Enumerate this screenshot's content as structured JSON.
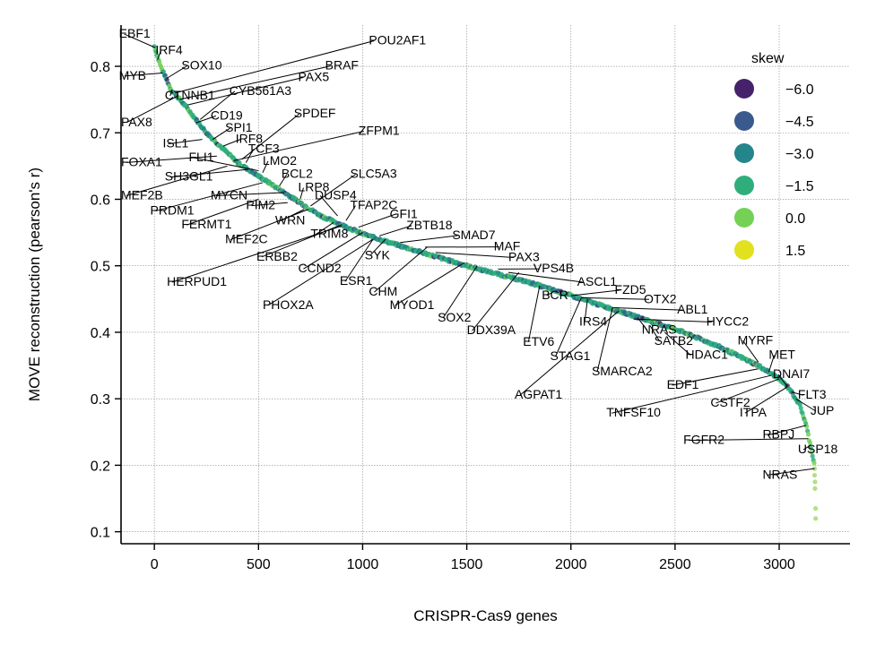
{
  "chart_data": {
    "type": "scatter",
    "xlabel": "CRISPR-Cas9 genes",
    "ylabel": "MOVE reconstruction (pearson's r)",
    "xlim": [
      -160,
      3340
    ],
    "ylim": [
      0.082,
      0.862
    ],
    "x_ticks": [
      0,
      500,
      1000,
      1500,
      2000,
      2500,
      3000
    ],
    "x_tick_labels": [
      "0",
      "500",
      "1000",
      "1500",
      "2000",
      "2500",
      "3000"
    ],
    "y_ticks": [
      0.1,
      0.2,
      0.3,
      0.4,
      0.5,
      0.6,
      0.7,
      0.8
    ],
    "y_tick_labels": [
      "0.1",
      "0.2",
      "0.3",
      "0.4",
      "0.5",
      "0.6",
      "0.7",
      "0.8"
    ],
    "grid": true,
    "curve_shape": [
      [
        0,
        0.83
      ],
      [
        30,
        0.8
      ],
      [
        80,
        0.765
      ],
      [
        150,
        0.74
      ],
      [
        250,
        0.7
      ],
      [
        400,
        0.655
      ],
      [
        600,
        0.615
      ],
      [
        800,
        0.575
      ],
      [
        1000,
        0.548
      ],
      [
        1200,
        0.528
      ],
      [
        1500,
        0.5
      ],
      [
        1800,
        0.475
      ],
      [
        2000,
        0.455
      ],
      [
        2200,
        0.435
      ],
      [
        2500,
        0.405
      ],
      [
        2700,
        0.38
      ],
      [
        2900,
        0.35
      ],
      [
        3000,
        0.33
      ],
      [
        3050,
        0.315
      ],
      [
        3100,
        0.29
      ],
      [
        3130,
        0.26
      ],
      [
        3150,
        0.23
      ],
      [
        3170,
        0.2
      ]
    ],
    "tail_points": [
      [
        3170,
        0.195
      ],
      [
        3170,
        0.185
      ],
      [
        3172,
        0.175
      ],
      [
        3172,
        0.165
      ],
      [
        3175,
        0.135
      ],
      [
        3175,
        0.12
      ]
    ],
    "legend": {
      "title": "skew",
      "placement": "top-right",
      "entries": [
        {
          "label": "−6.0",
          "color": "#46226b"
        },
        {
          "label": "−4.5",
          "color": "#3a5a8e"
        },
        {
          "label": "−3.0",
          "color": "#24858a"
        },
        {
          "label": "−1.5",
          "color": "#2fae7c"
        },
        {
          "label": "0.0",
          "color": "#74d155"
        },
        {
          "label": "1.5",
          "color": "#e1e11f"
        }
      ]
    },
    "annotations": [
      {
        "label": "EBF1",
        "x": 5,
        "y": 0.828,
        "tx": -170,
        "ty": 0.843
      },
      {
        "label": "IRF4",
        "x": 15,
        "y": 0.81,
        "tx": 5,
        "ty": 0.818
      },
      {
        "label": "MYB",
        "x": 40,
        "y": 0.79,
        "tx": -170,
        "ty": 0.78
      },
      {
        "label": "SOX10",
        "x": 60,
        "y": 0.782,
        "tx": 130,
        "ty": 0.795
      },
      {
        "label": "CTNNB1",
        "x": 85,
        "y": 0.765,
        "tx": 50,
        "ty": 0.75
      },
      {
        "label": "PAX8",
        "x": 110,
        "y": 0.755,
        "tx": -160,
        "ty": 0.71
      },
      {
        "label": "BRAF",
        "x": 120,
        "y": 0.75,
        "tx": 820,
        "ty": 0.795
      },
      {
        "label": "POU2AF1",
        "x": 100,
        "y": 0.76,
        "tx": 1030,
        "ty": 0.833
      },
      {
        "label": "PAX5",
        "x": 160,
        "y": 0.742,
        "tx": 690,
        "ty": 0.778
      },
      {
        "label": "CYB561A3",
        "x": 220,
        "y": 0.72,
        "tx": 360,
        "ty": 0.757
      },
      {
        "label": "CD19",
        "x": 200,
        "y": 0.715,
        "tx": 270,
        "ty": 0.72
      },
      {
        "label": "SPI1",
        "x": 280,
        "y": 0.69,
        "tx": 340,
        "ty": 0.702
      },
      {
        "label": "ISL1",
        "x": 230,
        "y": 0.69,
        "tx": 40,
        "ty": 0.678
      },
      {
        "label": "IRF8",
        "x": 330,
        "y": 0.68,
        "tx": 390,
        "ty": 0.685
      },
      {
        "label": "SPDEF",
        "x": 420,
        "y": 0.66,
        "tx": 670,
        "ty": 0.723
      },
      {
        "label": "TCF3",
        "x": 440,
        "y": 0.655,
        "tx": 450,
        "ty": 0.67
      },
      {
        "label": "FLI1",
        "x": 500,
        "y": 0.643,
        "tx": 165,
        "ty": 0.657
      },
      {
        "label": "ZFPM1",
        "x": 380,
        "y": 0.658,
        "tx": 980,
        "ty": 0.697
      },
      {
        "label": "FOXA1",
        "x": 300,
        "y": 0.665,
        "tx": -160,
        "ty": 0.65
      },
      {
        "label": "LMO2",
        "x": 520,
        "y": 0.64,
        "tx": 520,
        "ty": 0.652
      },
      {
        "label": "BCL2",
        "x": 600,
        "y": 0.62,
        "tx": 610,
        "ty": 0.632
      },
      {
        "label": "SH3GL1",
        "x": 450,
        "y": 0.645,
        "tx": 50,
        "ty": 0.628
      },
      {
        "label": "SLC5A3",
        "x": 750,
        "y": 0.59,
        "tx": 940,
        "ty": 0.632
      },
      {
        "label": "LRP8",
        "x": 700,
        "y": 0.6,
        "tx": 690,
        "ty": 0.612
      },
      {
        "label": "MEF2B",
        "x": 350,
        "y": 0.65,
        "tx": -160,
        "ty": 0.6
      },
      {
        "label": "MYCN",
        "x": 620,
        "y": 0.61,
        "tx": 270,
        "ty": 0.6
      },
      {
        "label": "DUSP4",
        "x": 880,
        "y": 0.575,
        "tx": 770,
        "ty": 0.6
      },
      {
        "label": "TFAP2C",
        "x": 920,
        "y": 0.568,
        "tx": 940,
        "ty": 0.585
      },
      {
        "label": "PIM2",
        "x": 640,
        "y": 0.595,
        "tx": 440,
        "ty": 0.585
      },
      {
        "label": "PRDM1",
        "x": 520,
        "y": 0.625,
        "tx": -20,
        "ty": 0.577
      },
      {
        "label": "GFI1",
        "x": 980,
        "y": 0.558,
        "tx": 1130,
        "ty": 0.572
      },
      {
        "label": "WRN",
        "x": 720,
        "y": 0.585,
        "tx": 580,
        "ty": 0.562
      },
      {
        "label": "FERMT1",
        "x": 500,
        "y": 0.6,
        "tx": 130,
        "ty": 0.556
      },
      {
        "label": "ZBTB18",
        "x": 1080,
        "y": 0.545,
        "tx": 1210,
        "ty": 0.555
      },
      {
        "label": "TRIM8",
        "x": 860,
        "y": 0.565,
        "tx": 750,
        "ty": 0.542
      },
      {
        "label": "MEF2C",
        "x": 740,
        "y": 0.585,
        "tx": 340,
        "ty": 0.534
      },
      {
        "label": "SMAD7",
        "x": 1180,
        "y": 0.535,
        "tx": 1430,
        "ty": 0.54
      },
      {
        "label": "MAF",
        "x": 1300,
        "y": 0.528,
        "tx": 1630,
        "ty": 0.523
      },
      {
        "label": "SYK",
        "x": 1110,
        "y": 0.54,
        "tx": 1010,
        "ty": 0.51
      },
      {
        "label": "ERBB2",
        "x": 900,
        "y": 0.562,
        "tx": 490,
        "ty": 0.508
      },
      {
        "label": "PAX3",
        "x": 1350,
        "y": 0.52,
        "tx": 1700,
        "ty": 0.507
      },
      {
        "label": "VPS4B",
        "x": 1650,
        "y": 0.495,
        "tx": 1820,
        "ty": 0.49
      },
      {
        "label": "CCND2",
        "x": 1000,
        "y": 0.55,
        "tx": 690,
        "ty": 0.49
      },
      {
        "label": "HERPUD1",
        "x": 900,
        "y": 0.56,
        "tx": 60,
        "ty": 0.47
      },
      {
        "label": "ESR1",
        "x": 1050,
        "y": 0.54,
        "tx": 890,
        "ty": 0.471
      },
      {
        "label": "ASCL1",
        "x": 1700,
        "y": 0.49,
        "tx": 2030,
        "ty": 0.47
      },
      {
        "label": "FZD5",
        "x": 2000,
        "y": 0.455,
        "tx": 2210,
        "ty": 0.458
      },
      {
        "label": "CHM",
        "x": 1310,
        "y": 0.528,
        "tx": 1030,
        "ty": 0.455
      },
      {
        "label": "BCR",
        "x": 1920,
        "y": 0.462,
        "tx": 1860,
        "ty": 0.45
      },
      {
        "label": "OTX2",
        "x": 2050,
        "y": 0.452,
        "tx": 2350,
        "ty": 0.444
      },
      {
        "label": "PHOX2A",
        "x": 1050,
        "y": 0.54,
        "tx": 520,
        "ty": 0.435
      },
      {
        "label": "MYOD1",
        "x": 1490,
        "y": 0.505,
        "tx": 1130,
        "ty": 0.435
      },
      {
        "label": "ABL1",
        "x": 2200,
        "y": 0.437,
        "tx": 2510,
        "ty": 0.428
      },
      {
        "label": "SOX2",
        "x": 1550,
        "y": 0.5,
        "tx": 1360,
        "ty": 0.416
      },
      {
        "label": "IRS4",
        "x": 2080,
        "y": 0.45,
        "tx": 2040,
        "ty": 0.41
      },
      {
        "label": "HYCC2",
        "x": 2300,
        "y": 0.42,
        "tx": 2650,
        "ty": 0.41
      },
      {
        "label": "NRAS",
        "x": 2320,
        "y": 0.422,
        "tx": 2340,
        "ty": 0.398
      },
      {
        "label": "DDX39A",
        "x": 1750,
        "y": 0.49,
        "tx": 1500,
        "ty": 0.397
      },
      {
        "label": "MYRF",
        "x": 2900,
        "y": 0.355,
        "tx": 2800,
        "ty": 0.382
      },
      {
        "label": "SATB2",
        "x": 2380,
        "y": 0.41,
        "tx": 2400,
        "ty": 0.381
      },
      {
        "label": "ETV6",
        "x": 1850,
        "y": 0.47,
        "tx": 1770,
        "ty": 0.38
      },
      {
        "label": "HDAC1",
        "x": 2450,
        "y": 0.4,
        "tx": 2550,
        "ty": 0.36
      },
      {
        "label": "MET",
        "x": 2950,
        "y": 0.34,
        "tx": 2950,
        "ty": 0.36
      },
      {
        "label": "STAG1",
        "x": 2050,
        "y": 0.452,
        "tx": 1900,
        "ty": 0.358
      },
      {
        "label": "SMARCA2",
        "x": 2200,
        "y": 0.437,
        "tx": 2100,
        "ty": 0.335
      },
      {
        "label": "DNAI7",
        "x": 3040,
        "y": 0.318,
        "tx": 2970,
        "ty": 0.331
      },
      {
        "label": "EDF1",
        "x": 2900,
        "y": 0.345,
        "tx": 2460,
        "ty": 0.315
      },
      {
        "label": "FLT3",
        "x": 3060,
        "y": 0.31,
        "tx": 3090,
        "ty": 0.3
      },
      {
        "label": "AGPAT1",
        "x": 2230,
        "y": 0.432,
        "tx": 1730,
        "ty": 0.3
      },
      {
        "label": "CSTF2",
        "x": 3000,
        "y": 0.33,
        "tx": 2670,
        "ty": 0.288
      },
      {
        "label": "TNFSF10",
        "x": 2960,
        "y": 0.335,
        "tx": 2170,
        "ty": 0.273
      },
      {
        "label": "ITPA",
        "x": 3040,
        "y": 0.318,
        "tx": 2810,
        "ty": 0.273
      },
      {
        "label": "JUP",
        "x": 3080,
        "y": 0.3,
        "tx": 3150,
        "ty": 0.276
      },
      {
        "label": "RBPJ",
        "x": 3130,
        "y": 0.26,
        "tx": 2920,
        "ty": 0.24
      },
      {
        "label": "FGFR2",
        "x": 3140,
        "y": 0.24,
        "tx": 2540,
        "ty": 0.232
      },
      {
        "label": "USP18",
        "x": 3150,
        "y": 0.23,
        "tx": 3090,
        "ty": 0.218
      },
      {
        "label": "NRAS",
        "x": 3170,
        "y": 0.195,
        "tx": 2920,
        "ty": 0.18
      }
    ]
  }
}
